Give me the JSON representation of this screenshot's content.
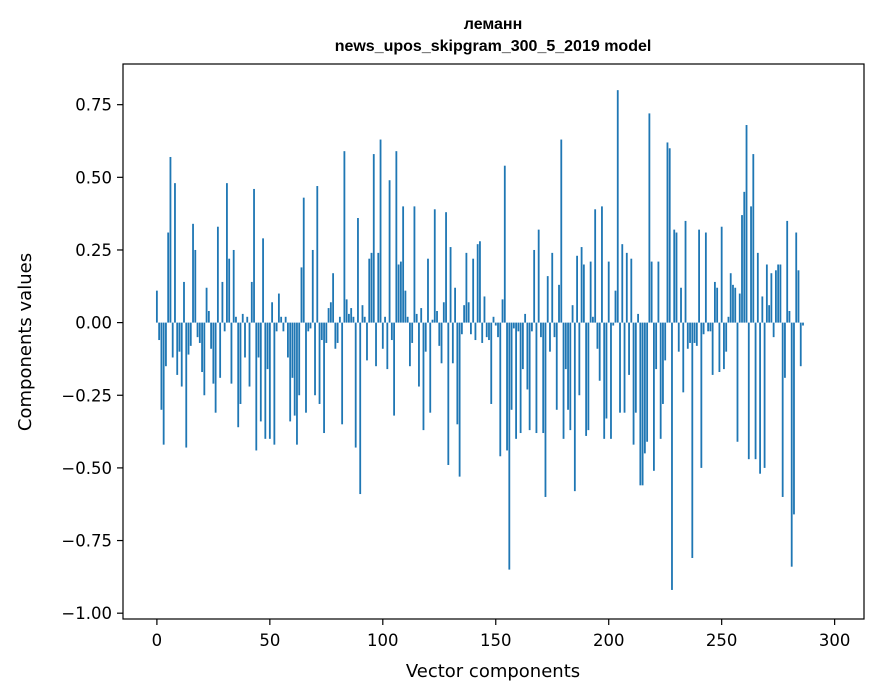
{
  "chart_data": {
    "type": "bar",
    "title_line1": "леманн",
    "title_line2": "news_upos_skipgram_300_5_2019 model",
    "xlabel": "Vector components",
    "ylabel": "Components values",
    "xlim": [
      -15,
      313
    ],
    "ylim": [
      -1.02,
      0.89
    ],
    "xticks": [
      0,
      50,
      100,
      150,
      200,
      250,
      300
    ],
    "xtick_labels": [
      "0",
      "50",
      "100",
      "150",
      "200",
      "250",
      "300"
    ],
    "yticks": [
      -1.0,
      -0.75,
      -0.5,
      -0.25,
      0.0,
      0.25,
      0.5,
      0.75
    ],
    "ytick_labels": [
      "−1.00",
      "−0.75",
      "−0.50",
      "−0.25",
      "0.00",
      "0.25",
      "0.50",
      "0.75"
    ],
    "bar_color": "#1f77b4",
    "values": [
      0.11,
      -0.06,
      -0.3,
      -0.42,
      -0.15,
      0.31,
      0.57,
      -0.12,
      0.48,
      -0.18,
      -0.1,
      -0.22,
      0.14,
      -0.43,
      -0.11,
      -0.08,
      0.34,
      0.25,
      -0.05,
      -0.07,
      -0.17,
      -0.25,
      0.12,
      0.04,
      -0.09,
      -0.21,
      -0.31,
      0.33,
      -0.19,
      0.14,
      -0.03,
      0.48,
      0.22,
      -0.21,
      0.25,
      0.02,
      -0.36,
      -0.28,
      0.03,
      -0.12,
      0.02,
      -0.22,
      0.14,
      0.46,
      -0.44,
      -0.12,
      -0.34,
      0.29,
      -0.4,
      -0.16,
      -0.4,
      0.07,
      -0.42,
      -0.03,
      0.1,
      0.02,
      -0.03,
      0.02,
      -0.12,
      -0.34,
      -0.19,
      -0.32,
      -0.42,
      -0.25,
      0.19,
      0.43,
      -0.31,
      -0.03,
      -0.02,
      0.25,
      -0.25,
      0.47,
      -0.28,
      -0.06,
      -0.38,
      -0.07,
      0.05,
      0.07,
      0.17,
      -0.09,
      -0.07,
      0.02,
      -0.35,
      0.59,
      0.08,
      0.03,
      0.05,
      0.02,
      -0.43,
      0.36,
      -0.59,
      0.06,
      0.02,
      -0.13,
      0.22,
      0.24,
      0.58,
      -0.15,
      0.24,
      0.63,
      -0.09,
      0.02,
      -0.16,
      0.49,
      -0.06,
      -0.32,
      0.59,
      0.2,
      0.21,
      0.4,
      0.11,
      0.02,
      -0.15,
      -0.07,
      0.4,
      0.03,
      -0.22,
      0.05,
      -0.37,
      -0.1,
      0.22,
      -0.31,
      0.01,
      0.39,
      0.04,
      -0.08,
      -0.14,
      0.07,
      0.38,
      -0.49,
      0.26,
      -0.14,
      0.12,
      -0.35,
      -0.53,
      -0.04,
      0.06,
      0.24,
      0.07,
      -0.04,
      0.22,
      -0.06,
      0.27,
      0.28,
      -0.07,
      0.09,
      -0.05,
      -0.06,
      -0.28,
      0.02,
      -0.01,
      -0.05,
      -0.46,
      0.08,
      0.54,
      -0.44,
      -0.85,
      -0.3,
      -0.02,
      -0.4,
      -0.03,
      -0.38,
      -0.16,
      0.03,
      -0.23,
      -0.37,
      -0.03,
      0.25,
      -0.38,
      0.32,
      -0.05,
      -0.38,
      -0.6,
      0.16,
      -0.1,
      0.24,
      -0.05,
      -0.3,
      0.13,
      0.63,
      -0.4,
      -0.16,
      -0.3,
      -0.37,
      0.06,
      -0.58,
      0.23,
      -0.25,
      0.26,
      0.2,
      -0.39,
      -0.37,
      0.21,
      0.02,
      0.39,
      -0.09,
      -0.2,
      0.4,
      -0.4,
      -0.33,
      0.21,
      -0.4,
      -0.01,
      0.11,
      0.8,
      -0.31,
      0.27,
      -0.31,
      0.24,
      -0.18,
      0.22,
      -0.42,
      -0.31,
      0.03,
      -0.56,
      -0.56,
      -0.45,
      -0.41,
      0.72,
      0.21,
      -0.51,
      -0.16,
      0.21,
      -0.4,
      -0.28,
      -0.13,
      0.62,
      0.6,
      -0.92,
      0.32,
      0.31,
      -0.1,
      0.12,
      -0.24,
      0.35,
      -0.09,
      -0.07,
      -0.81,
      -0.07,
      -0.08,
      0.32,
      -0.5,
      -0.04,
      0.31,
      -0.03,
      -0.03,
      -0.18,
      0.14,
      0.12,
      -0.17,
      0.33,
      -0.16,
      -0.1,
      0.02,
      0.17,
      0.13,
      0.12,
      -0.41,
      0.1,
      0.37,
      0.45,
      0.68,
      -0.47,
      0.4,
      0.58,
      -0.47,
      0.24,
      -0.52,
      0.09,
      -0.5,
      0.2,
      0.06,
      0.17,
      -0.05,
      0.18,
      0.2,
      0.2,
      -0.6,
      -0.19,
      0.35,
      0.04,
      -0.84,
      -0.66,
      0.31,
      0.18,
      -0.15,
      -0.01
    ],
    "bars_shown": "every component bar drawn in blue"
  }
}
